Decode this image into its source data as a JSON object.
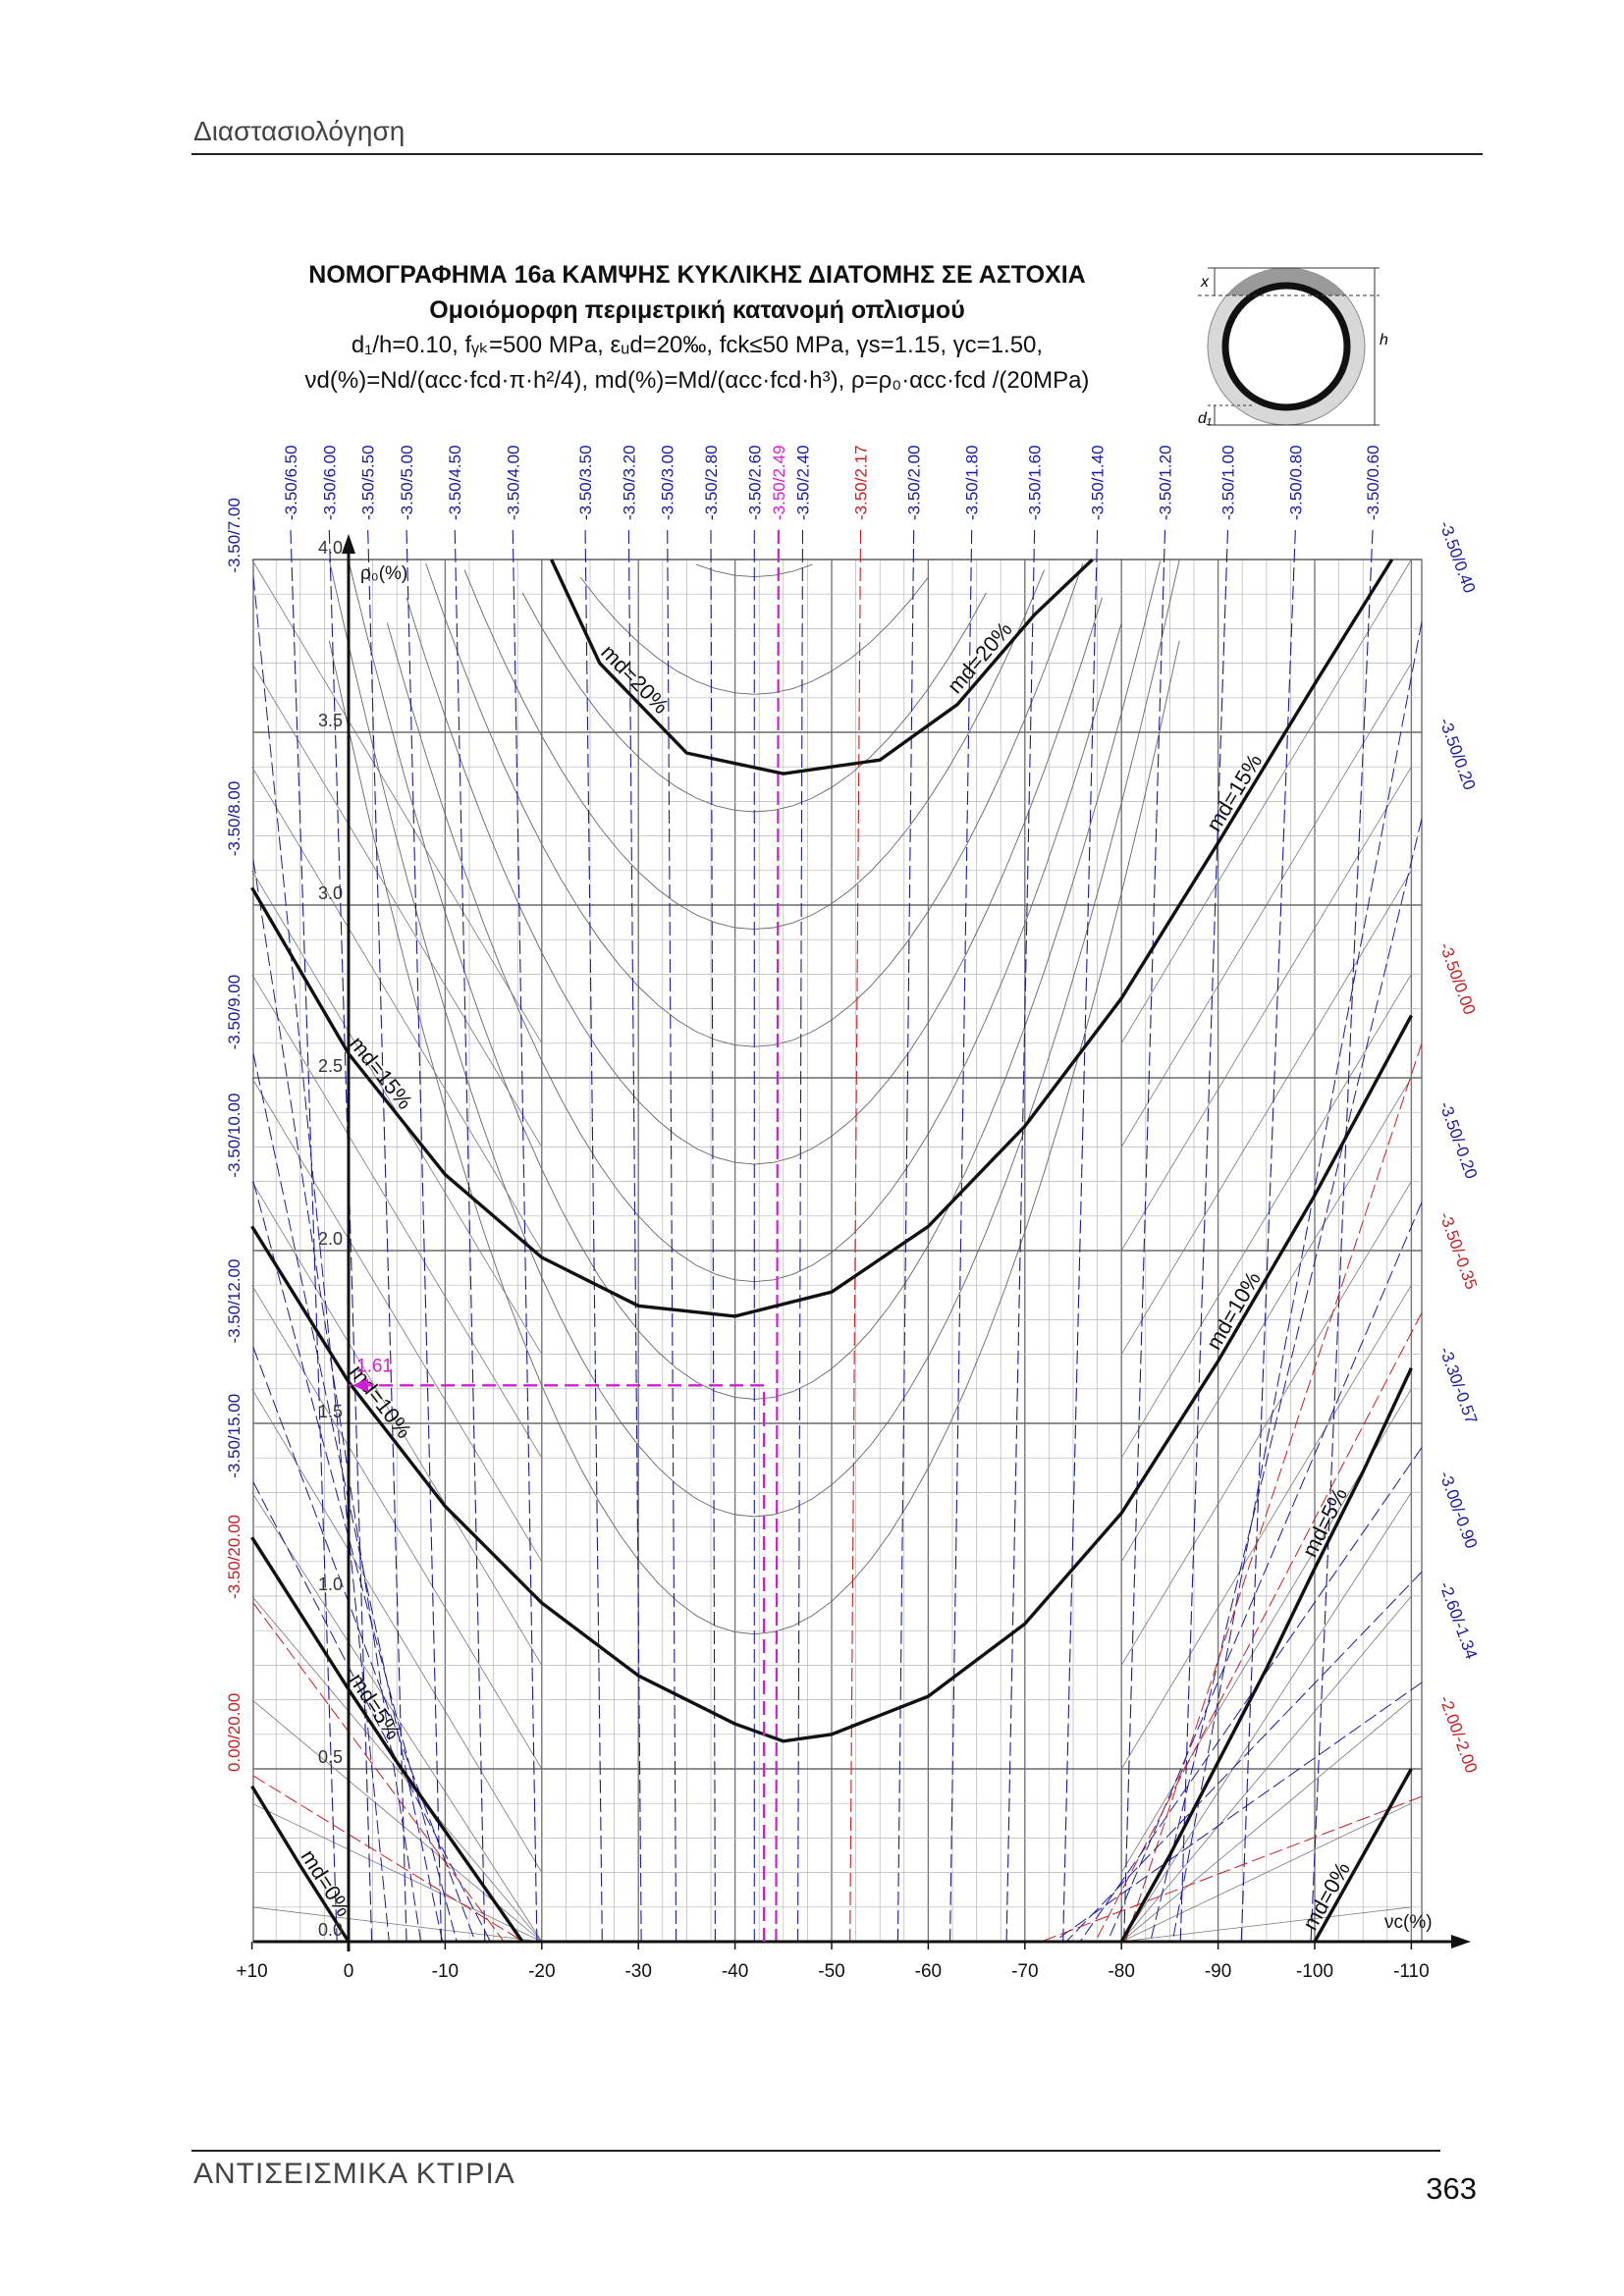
{
  "header": {
    "running_title": "Διαστασιολόγηση"
  },
  "title": {
    "line1": "ΝΟΜΟΓΡΑΦΗΜΑ 16a ΚΑΜΨΗΣ ΚΥΚΛΙΚΗΣ ΔΙΑΤΟΜΗΣ ΣΕ ΑΣΤΟΧΙΑ",
    "line2": "Ομοιόμορφη περιμετρική κατανομή οπλισμού",
    "line3": "d₁/h=0.10, fᵧₖ=500 MPa, εᵤd=20‰, fck≤50 MPa, γs=1.15, γc=1.50,",
    "line4": "νd(%)=Nd/(αcc·fcd·π·h²/4), md(%)=Md/(αcc·fcd·h³), ρ=ρ₀·αcc·fcd /(20MPa)"
  },
  "section_figure": {
    "label_x": "x",
    "label_h": "h",
    "label_d1": "d₁"
  },
  "footer": {
    "book_title": "ΑΝΤΙΣΕΙΣΜΙΚΑ ΚΤΙΡΙΑ",
    "page_number": "363"
  },
  "chart_data": {
    "type": "line",
    "title": "ΝΟΜΟΓΡΑΦΗΜΑ 16a ΚΑΜΨΗΣ ΚΥΚΛΙΚΗΣ ΔΙΑΤΟΜΗΣ ΣΕ ΑΣΤΟΧΙΑ",
    "xlabel": "νc(%)",
    "ylabel": "ρ₀(%)",
    "xlim": [
      10,
      -110
    ],
    "ylim": [
      0,
      4.0
    ],
    "x_ticks": [
      "+10",
      "0",
      "-10",
      "-20",
      "-30",
      "-40",
      "-50",
      "-60",
      "-70",
      "-80",
      "-90",
      "-100",
      "-110"
    ],
    "x_tick_values": [
      10,
      0,
      -10,
      -20,
      -30,
      -40,
      -50,
      -60,
      -70,
      -80,
      -90,
      -100,
      -110
    ],
    "y_ticks": [
      "0.0",
      "0.5",
      "1.0",
      "1.5",
      "2.0",
      "2.5",
      "3.0",
      "3.5",
      "4.0"
    ],
    "y_tick_values": [
      0,
      0.5,
      1.0,
      1.5,
      2.0,
      2.5,
      3.0,
      3.5,
      4.0
    ],
    "grid": true,
    "md_curves": [
      {
        "label": "md=20%",
        "label2": "md=20%",
        "points": [
          [
            -21,
            4.0
          ],
          [
            -26,
            3.7
          ],
          [
            -35,
            3.44
          ],
          [
            -45,
            3.38
          ],
          [
            -55,
            3.42
          ],
          [
            -63,
            3.58
          ],
          [
            -71,
            3.84
          ],
          [
            -77,
            4.0
          ]
        ]
      },
      {
        "label": "md=15%",
        "label2": "md=15%",
        "points": [
          [
            10,
            3.05
          ],
          [
            0,
            2.57
          ],
          [
            -10,
            2.22
          ],
          [
            -20,
            1.98
          ],
          [
            -30,
            1.84
          ],
          [
            -40,
            1.81
          ],
          [
            -50,
            1.88
          ],
          [
            -60,
            2.07
          ],
          [
            -70,
            2.36
          ],
          [
            -80,
            2.73
          ],
          [
            -90,
            3.18
          ],
          [
            -100,
            3.64
          ],
          [
            -108,
            4.0
          ]
        ]
      },
      {
        "label": "md=10%",
        "label2": "md=10%",
        "points": [
          [
            10,
            2.07
          ],
          [
            0,
            1.62
          ],
          [
            -10,
            1.26
          ],
          [
            -20,
            0.98
          ],
          [
            -30,
            0.77
          ],
          [
            -40,
            0.63
          ],
          [
            -45,
            0.58
          ],
          [
            -50,
            0.6
          ],
          [
            -60,
            0.71
          ],
          [
            -70,
            0.92
          ],
          [
            -80,
            1.24
          ],
          [
            -90,
            1.68
          ],
          [
            -100,
            2.16
          ],
          [
            -110,
            2.68
          ]
        ]
      },
      {
        "label": "md=5%",
        "label2": "",
        "points": [
          [
            10,
            1.17
          ],
          [
            0,
            0.73
          ],
          [
            -5,
            0.52
          ],
          [
            -10,
            0.32
          ],
          [
            -15,
            0.12
          ],
          [
            -18,
            0.0
          ]
        ]
      },
      {
        "label": "",
        "label2": "md=5%",
        "points": [
          [
            -80,
            0.0
          ],
          [
            -85,
            0.25
          ],
          [
            -90,
            0.52
          ],
          [
            -95,
            0.79
          ],
          [
            -100,
            1.08
          ],
          [
            -105,
            1.36
          ],
          [
            -110,
            1.66
          ]
        ]
      },
      {
        "label": "md=0%",
        "label2": "",
        "points": [
          [
            10,
            0.45
          ],
          [
            5,
            0.22
          ],
          [
            0,
            0.0
          ]
        ]
      },
      {
        "label": "",
        "label2": "md=0%",
        "points": [
          [
            -100,
            0.0
          ],
          [
            -105,
            0.25
          ],
          [
            -110,
            0.5
          ]
        ]
      }
    ],
    "strain_labels_top": [
      {
        "text": "-3.50/6.50",
        "x": 6.0,
        "color": "blue"
      },
      {
        "text": "-3.50/6.00",
        "x": 2.0,
        "color": "blue"
      },
      {
        "text": "-3.50/5.50",
        "x": -2.0,
        "color": "blue"
      },
      {
        "text": "-3.50/5.00",
        "x": -6.0,
        "color": "blue"
      },
      {
        "text": "-3.50/4.50",
        "x": -11.0,
        "color": "blue"
      },
      {
        "text": "-3.50/4.00",
        "x": -17.0,
        "color": "blue"
      },
      {
        "text": "-3.50/3.50",
        "x": -24.5,
        "color": "blue"
      },
      {
        "text": "-3.50/3.20",
        "x": -29.0,
        "color": "blue"
      },
      {
        "text": "-3.50/3.00",
        "x": -33.0,
        "color": "blue"
      },
      {
        "text": "-3.50/2.80",
        "x": -37.5,
        "color": "blue"
      },
      {
        "text": "-3.50/2.60",
        "x": -42.0,
        "color": "blue"
      },
      {
        "text": "-3.50/2.49",
        "x": -44.5,
        "color": "magenta"
      },
      {
        "text": "-3.50/2.40",
        "x": -47.0,
        "color": "blue"
      },
      {
        "text": "-3.50/2.17",
        "x": -53.0,
        "color": "red"
      },
      {
        "text": "-3.50/2.00",
        "x": -58.5,
        "color": "blue"
      },
      {
        "text": "-3.50/1.80",
        "x": -64.5,
        "color": "blue"
      },
      {
        "text": "-3.50/1.60",
        "x": -71.0,
        "color": "blue"
      },
      {
        "text": "-3.50/1.40",
        "x": -77.5,
        "color": "blue"
      },
      {
        "text": "-3.50/1.20",
        "x": -84.5,
        "color": "blue"
      },
      {
        "text": "-3.50/1.00",
        "x": -91.0,
        "color": "blue"
      },
      {
        "text": "-3.50/0.80",
        "x": -98.0,
        "color": "blue"
      },
      {
        "text": "-3.50/0.60",
        "x": -106.0,
        "color": "blue"
      }
    ],
    "strain_labels_left": [
      {
        "text": "-3.50/7.00",
        "y": 3.95,
        "color": "blue"
      },
      {
        "text": "-3.50/8.00",
        "y": 3.13,
        "color": "blue"
      },
      {
        "text": "-3.50/9.00",
        "y": 2.57,
        "color": "blue"
      },
      {
        "text": "-3.50/10.00",
        "y": 2.2,
        "color": "blue"
      },
      {
        "text": "-3.50/12.00",
        "y": 1.72,
        "color": "blue"
      },
      {
        "text": "-3.50/15.00",
        "y": 1.33,
        "color": "blue"
      },
      {
        "text": "-3.50/20.00",
        "y": 0.98,
        "color": "red"
      },
      {
        "text": "0.00/20.00",
        "y": 0.48,
        "color": "red"
      }
    ],
    "strain_labels_right": [
      {
        "text": "-3.50/0.40",
        "y": 3.82,
        "color": "blue"
      },
      {
        "text": "-3.50/0.20",
        "y": 3.25,
        "color": "blue"
      },
      {
        "text": "-3.50/0.00",
        "y": 2.6,
        "color": "red"
      },
      {
        "text": "-3.50/-0.20",
        "y": 2.14,
        "color": "blue"
      },
      {
        "text": "-3.50/-0.35",
        "y": 1.82,
        "color": "red"
      },
      {
        "text": "-3.30/-0.57",
        "y": 1.43,
        "color": "blue"
      },
      {
        "text": "-3.00/-0.90",
        "y": 1.07,
        "color": "blue"
      },
      {
        "text": "-2.60/-1.34",
        "y": 0.75,
        "color": "blue"
      },
      {
        "text": "-2.00/-2.00",
        "y": 0.42,
        "color": "red"
      }
    ],
    "example": {
      "nu_c": -43.0,
      "rho0": 1.61,
      "rho_label": "1.61",
      "strain_label": "-3.50/2.49"
    }
  }
}
